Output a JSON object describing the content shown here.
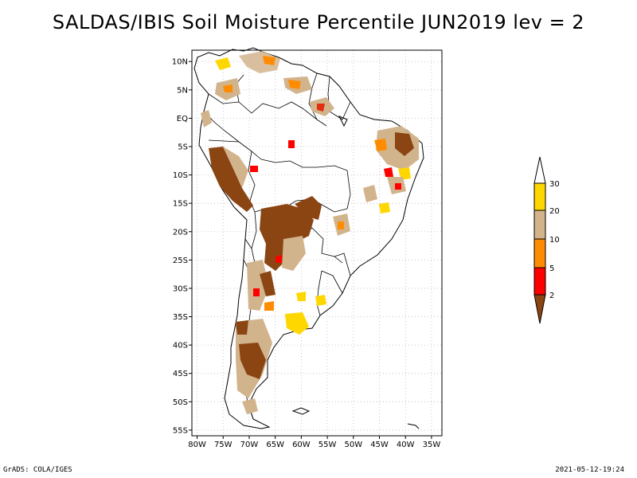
{
  "title": "SALDAS/IBIS Soil Moisture Percentile JUN2019 lev = 2",
  "footer": {
    "left": "GrADS: COLA/IGES",
    "right": "2021-05-12-19:24"
  },
  "map": {
    "lon_range": [
      -81,
      -33
    ],
    "lat_range": [
      -56,
      12
    ],
    "lat_ticks": [
      {
        "v": 10,
        "label": "10N"
      },
      {
        "v": 5,
        "label": "5N"
      },
      {
        "v": 0,
        "label": "EQ"
      },
      {
        "v": -5,
        "label": "5S"
      },
      {
        "v": -10,
        "label": "10S"
      },
      {
        "v": -15,
        "label": "15S"
      },
      {
        "v": -20,
        "label": "20S"
      },
      {
        "v": -25,
        "label": "25S"
      },
      {
        "v": -30,
        "label": "30S"
      },
      {
        "v": -35,
        "label": "35S"
      },
      {
        "v": -40,
        "label": "40S"
      },
      {
        "v": -45,
        "label": "45S"
      },
      {
        "v": -50,
        "label": "50S"
      },
      {
        "v": -55,
        "label": "55S"
      }
    ],
    "lon_ticks": [
      {
        "v": -80,
        "label": "80W"
      },
      {
        "v": -75,
        "label": "75W"
      },
      {
        "v": -70,
        "label": "70W"
      },
      {
        "v": -65,
        "label": "65W"
      },
      {
        "v": -60,
        "label": "60W"
      },
      {
        "v": -55,
        "label": "55W"
      },
      {
        "v": -50,
        "label": "50W"
      },
      {
        "v": -45,
        "label": "45W"
      },
      {
        "v": -40,
        "label": "40W"
      },
      {
        "v": -35,
        "label": "35W"
      }
    ]
  },
  "colorbar": {
    "levels": [
      "2",
      "5",
      "10",
      "20",
      "30"
    ],
    "colors": [
      "#8b4513",
      "#ff0000",
      "#ff8c00",
      "#d2b48c",
      "#ffd700",
      "#ffffff"
    ]
  }
}
